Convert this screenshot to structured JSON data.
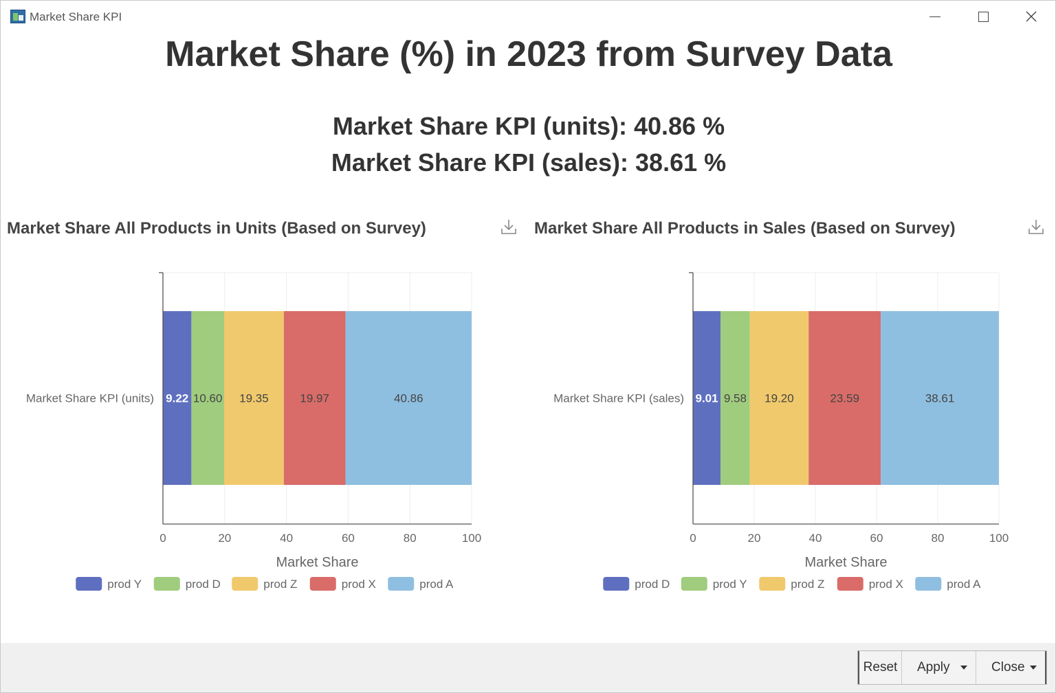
{
  "window": {
    "title": "Market Share KPI",
    "icon": "app-chart-icon"
  },
  "header": {
    "title": "Market Share (%) in 2023 from Survey Data",
    "kpi_units": "Market Share KPI (units): 40.86 %",
    "kpi_sales": "Market Share KPI (sales): 38.61 %"
  },
  "footer": {
    "reset_label": "Reset",
    "apply_label": "Apply",
    "close_label": "Close"
  },
  "chart_data": [
    {
      "type": "bar",
      "orientation": "horizontal",
      "stacked": true,
      "title": "Market Share All Products in Units (Based on Survey)",
      "categories": [
        "Market Share KPI (units)"
      ],
      "xlabel": "Market Share",
      "ylabel": "",
      "xlim": [
        0,
        100
      ],
      "xticks": [
        0,
        20,
        40,
        60,
        80,
        100
      ],
      "grid": true,
      "legend": "bottom",
      "series": [
        {
          "name": "prod Y",
          "values": [
            9.22
          ],
          "label": "9.22",
          "color": "#5f6fc0"
        },
        {
          "name": "prod D",
          "values": [
            10.6
          ],
          "label": "10.60",
          "color": "#a0cc7e"
        },
        {
          "name": "prod Z",
          "values": [
            19.35
          ],
          "label": "19.35",
          "color": "#f0c96c"
        },
        {
          "name": "prod X",
          "values": [
            19.97
          ],
          "label": "19.97",
          "color": "#d96c68"
        },
        {
          "name": "prod A",
          "values": [
            40.86
          ],
          "label": "40.86",
          "color": "#8fbfe0"
        }
      ]
    },
    {
      "type": "bar",
      "orientation": "horizontal",
      "stacked": true,
      "title": "Market Share All Products in Sales (Based on Survey)",
      "categories": [
        "Market Share KPI (sales)"
      ],
      "xlabel": "Market Share",
      "ylabel": "",
      "xlim": [
        0,
        100
      ],
      "xticks": [
        0,
        20,
        40,
        60,
        80,
        100
      ],
      "grid": true,
      "legend": "bottom",
      "series": [
        {
          "name": "prod D",
          "values": [
            9.01
          ],
          "label": "9.01",
          "color": "#5f6fc0"
        },
        {
          "name": "prod Y",
          "values": [
            9.58
          ],
          "label": "9.58",
          "color": "#a0cc7e"
        },
        {
          "name": "prod Z",
          "values": [
            19.2
          ],
          "label": "19.20",
          "color": "#f0c96c"
        },
        {
          "name": "prod X",
          "values": [
            23.59
          ],
          "label": "23.59",
          "color": "#d96c68"
        },
        {
          "name": "prod A",
          "values": [
            38.61
          ],
          "label": "38.61",
          "color": "#8fbfe0"
        }
      ]
    }
  ]
}
